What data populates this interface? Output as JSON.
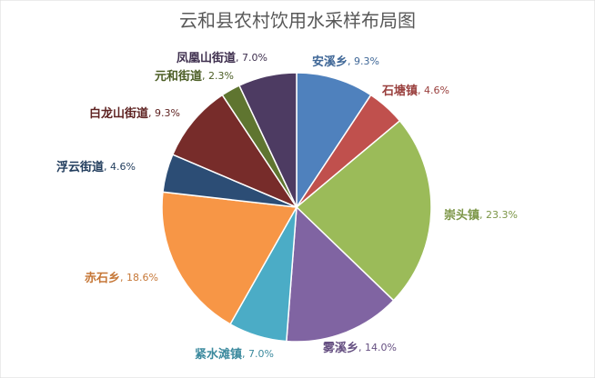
{
  "chart_data": {
    "type": "pie",
    "title": "云和县农村饮用水采样布局图",
    "categories": [
      "安溪乡",
      "石塘镇",
      "崇头镇",
      "雾溪乡",
      "紧水滩镇",
      "赤石乡",
      "浮云街道",
      "白龙山街道",
      "元和街道",
      "凤凰山街道"
    ],
    "values": [
      9.3,
      4.6,
      23.3,
      14.0,
      7.0,
      18.6,
      4.6,
      9.3,
      2.3,
      7.0
    ],
    "value_labels": [
      "9.3%",
      "4.6%",
      "23.3%",
      "14.0%",
      "7.0%",
      "18.6%",
      "4.6%",
      "9.3%",
      "2.3%",
      "7.0%"
    ],
    "label_separator": ", ",
    "colors": [
      "#4f81bd",
      "#c0504d",
      "#9bbb59",
      "#8064a2",
      "#4bacc6",
      "#f79646",
      "#2c4d75",
      "#772c2a",
      "#5f7530",
      "#4d3b62"
    ]
  }
}
